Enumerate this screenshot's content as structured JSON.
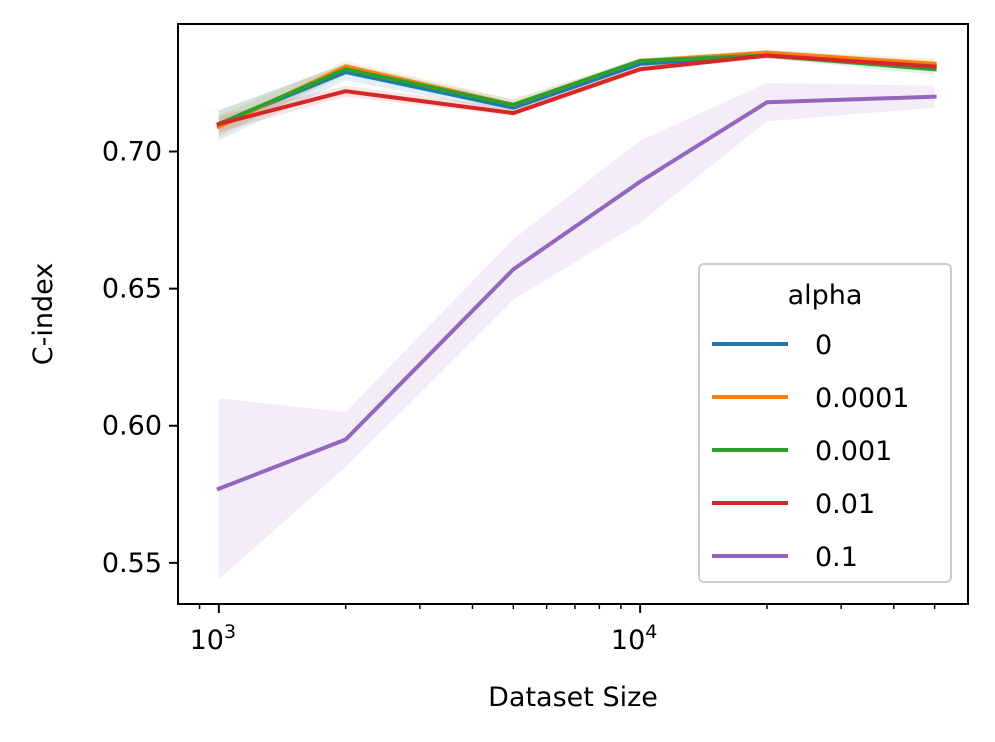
{
  "chart_data": {
    "type": "line",
    "title": "",
    "xlabel": "Dataset Size",
    "ylabel": "C-index",
    "xscale": "log",
    "xlim": [
      800,
      60000
    ],
    "ylim": [
      0.535,
      0.7465
    ],
    "x": [
      1000,
      2000,
      5000,
      10000,
      20000,
      50000
    ],
    "x_ticks": [
      {
        "value": 1000,
        "base": "10",
        "exp": "3"
      },
      {
        "value": 10000,
        "base": "10",
        "exp": "4"
      }
    ],
    "y_ticks": [
      0.55,
      0.6,
      0.65,
      0.7
    ],
    "y_tick_labels": [
      "0.55",
      "0.60",
      "0.65",
      "0.70"
    ],
    "grid": false,
    "legend": {
      "title": "alpha",
      "placement": "lower-right"
    },
    "series": [
      {
        "name": "0",
        "color": "#1f77b4",
        "values": [
          0.71,
          0.729,
          0.716,
          0.732,
          0.735,
          0.731
        ],
        "lower": [
          0.704,
          0.726,
          0.714,
          0.731,
          0.734,
          0.729
        ],
        "upper": [
          0.715,
          0.732,
          0.718,
          0.733,
          0.737,
          0.733
        ]
      },
      {
        "name": "0.0001",
        "color": "#ff7f0e",
        "values": [
          0.709,
          0.731,
          0.717,
          0.733,
          0.736,
          0.732
        ],
        "lower": [
          0.705,
          0.729,
          0.715,
          0.731,
          0.735,
          0.73
        ],
        "upper": [
          0.713,
          0.733,
          0.719,
          0.734,
          0.737,
          0.734
        ]
      },
      {
        "name": "0.001",
        "color": "#2ca02c",
        "values": [
          0.71,
          0.73,
          0.717,
          0.733,
          0.735,
          0.73
        ],
        "lower": [
          0.706,
          0.728,
          0.715,
          0.731,
          0.734,
          0.728
        ],
        "upper": [
          0.715,
          0.732,
          0.719,
          0.734,
          0.737,
          0.732
        ]
      },
      {
        "name": "0.01",
        "color": "#d62728",
        "values": [
          0.71,
          0.722,
          0.714,
          0.73,
          0.735,
          0.731
        ],
        "lower": [
          0.707,
          0.72,
          0.713,
          0.729,
          0.734,
          0.73
        ],
        "upper": [
          0.713,
          0.724,
          0.716,
          0.731,
          0.736,
          0.732
        ]
      },
      {
        "name": "0.1",
        "color": "#9467bd",
        "values": [
          0.577,
          0.595,
          0.657,
          0.689,
          0.718,
          0.72
        ],
        "lower": [
          0.544,
          0.585,
          0.646,
          0.674,
          0.711,
          0.716
        ],
        "upper": [
          0.61,
          0.605,
          0.668,
          0.704,
          0.725,
          0.724
        ]
      }
    ]
  }
}
